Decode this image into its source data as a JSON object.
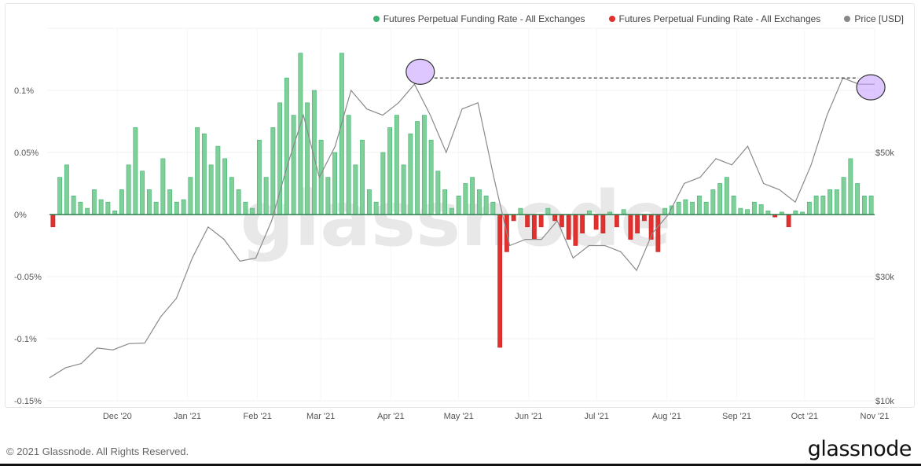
{
  "chart_data": {
    "type": "bar+line",
    "legend": [
      {
        "label": "Futures Perpetual Funding Rate - All Exchanges",
        "color": "#3cb371"
      },
      {
        "label": "Futures Perpetual Funding Rate - All Exchanges",
        "color": "#e0312f"
      },
      {
        "label": "Price [USD]",
        "color": "#888888"
      }
    ],
    "legend_position": "top-right",
    "x_ticks": [
      "Dec '20",
      "Jan '21",
      "Feb '21",
      "Mar '21",
      "Apr '21",
      "May '21",
      "Jun '21",
      "Jul '21",
      "Aug '21",
      "Sep '21",
      "Oct '21",
      "Nov '21"
    ],
    "y_left_ticks": [
      {
        "label": "0.1%",
        "value": 0.1
      },
      {
        "label": "0.05%",
        "value": 0.05
      },
      {
        "label": "0%",
        "value": 0
      },
      {
        "label": "-0.05%",
        "value": -0.05
      },
      {
        "label": "-0.1%",
        "value": -0.1
      },
      {
        "label": "-0.15%",
        "value": -0.15
      }
    ],
    "y_right_ticks": [
      {
        "label": "$50k",
        "value": 50
      },
      {
        "label": "$30k",
        "value": 30
      },
      {
        "label": "$10k",
        "value": 10
      }
    ],
    "y_left_range": [
      -0.15,
      0.15
    ],
    "y_right_range_k": [
      10,
      65
    ],
    "x_range": [
      "2020-11-01",
      "2021-11-01"
    ],
    "funding_rate_pct_every_3_days": [
      -0.01,
      0.03,
      0.04,
      0.015,
      0.01,
      0.005,
      0.02,
      0.012,
      0.01,
      0.003,
      0.02,
      0.04,
      0.07,
      0.035,
      0.02,
      0.01,
      0.045,
      0.02,
      0.01,
      0.012,
      0.03,
      0.07,
      0.065,
      0.04,
      0.055,
      0.045,
      0.03,
      0.02,
      0.01,
      0.005,
      0.06,
      0.03,
      0.07,
      0.09,
      0.11,
      0.08,
      0.13,
      0.09,
      0.1,
      0.06,
      0.03,
      0.05,
      0.13,
      0.08,
      0.04,
      0.06,
      0.02,
      0.01,
      0.05,
      0.07,
      0.08,
      0.04,
      0.065,
      0.075,
      0.08,
      0.06,
      0.035,
      0.02,
      0.005,
      0.015,
      0.025,
      0.03,
      0.02,
      0.015,
      0.01,
      -0.107,
      -0.03,
      -0.005,
      0.005,
      -0.01,
      -0.02,
      -0.01,
      0.005,
      -0.005,
      -0.01,
      -0.02,
      -0.025,
      -0.015,
      0.003,
      -0.012,
      -0.015,
      0.002,
      -0.01,
      0.004,
      -0.02,
      -0.015,
      -0.005,
      -0.02,
      -0.03,
      0.005,
      0.007,
      0.01,
      0.012,
      0.01,
      0.015,
      0.01,
      0.02,
      0.025,
      0.03,
      0.015,
      0.005,
      0.004,
      0.01,
      0.008,
      0.003,
      -0.002,
      0.002,
      -0.01,
      0.003,
      0.002,
      0.01,
      0.015,
      0.015,
      0.02,
      0.02,
      0.03,
      0.045,
      0.025,
      0.015,
      0.015
    ],
    "price_usd_k_weekly": [
      13.7,
      15.3,
      16,
      18.5,
      18.2,
      19.2,
      19.3,
      23.5,
      26.5,
      33,
      38,
      36,
      32.5,
      33,
      39,
      48,
      56,
      46,
      51,
      60,
      57,
      56,
      58,
      61,
      56,
      50,
      57,
      58,
      46,
      35,
      36,
      36,
      39,
      33,
      35,
      35,
      34,
      31,
      37,
      40,
      45,
      46,
      49,
      48,
      51,
      45,
      44,
      42,
      48,
      56,
      62,
      61,
      61
    ],
    "annotations": [
      {
        "type": "circle",
        "date": "2021-04-14",
        "price_k": 63.5
      },
      {
        "type": "circle",
        "date": "2021-10-31",
        "price_k": 61
      },
      {
        "type": "dashed-line",
        "price_k": 62
      }
    ]
  },
  "watermark": "glassnode",
  "footer": {
    "copyright": "© 2021 Glassnode. All Rights Reserved.",
    "logo": "glassnode"
  }
}
